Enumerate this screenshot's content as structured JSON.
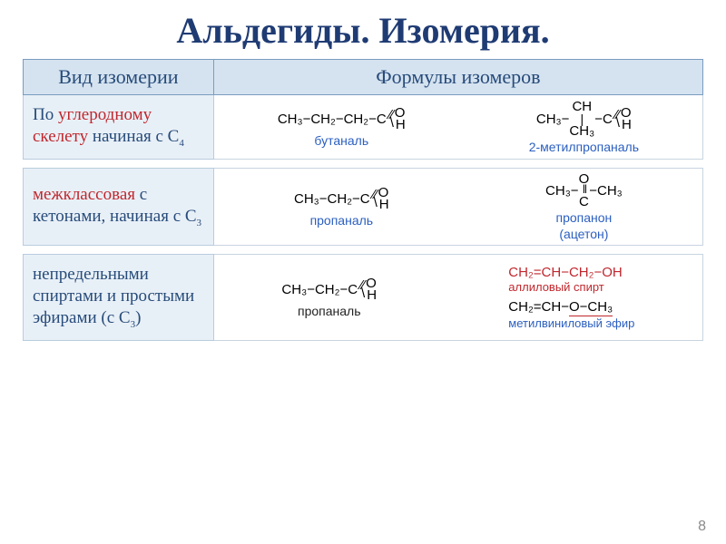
{
  "title": "Альдегиды. Изомерия.",
  "headers": {
    "col1": "Вид изомерии",
    "col2": "Формулы изомеров"
  },
  "rows": {
    "r1": {
      "label_pre": "По ",
      "label_hl": "углеродному скелету",
      "label_post": "  начиная с С",
      "label_sub": "4",
      "m1": {
        "chain": "CH₃−CH₂−CH₂−C",
        "o": "O",
        "h": "H",
        "name": "бутаналь"
      },
      "m2": {
        "left": "CH₃−",
        "mid_top": "CH",
        "branch": "CH₃",
        "right": "−C",
        "o": "O",
        "h": "H",
        "name": "2-метилпропаналь"
      }
    },
    "r2": {
      "label_hl": "межклассовая",
      "label_post": " с кетонами, начиная с С",
      "label_sub": "3",
      "m1": {
        "chain": "CH₃−CH₂−C",
        "o": "O",
        "h": "H",
        "name": "пропаналь"
      },
      "m2": {
        "left": "CH₃−",
        "right": "−CH₃",
        "c": "C",
        "o": "O",
        "name": "пропанон",
        "sub": "(ацетон)"
      }
    },
    "r3": {
      "label": "непредельными спиртами и простыми эфирами (с С",
      "label_sub": "3",
      "label_end": ")",
      "m1": {
        "chain": "CH₃−CH₂−C",
        "o": "O",
        "h": "H",
        "name": "пропаналь"
      },
      "l1": {
        "f": "CH₂=CH−CH₂−OH",
        "name": "аллиловый спирт"
      },
      "l2": {
        "f_a": "CH₂=CH−",
        "f_b": "O−CH₃",
        "name": "метилвиниловый эфир"
      }
    }
  },
  "pagenum": "8"
}
